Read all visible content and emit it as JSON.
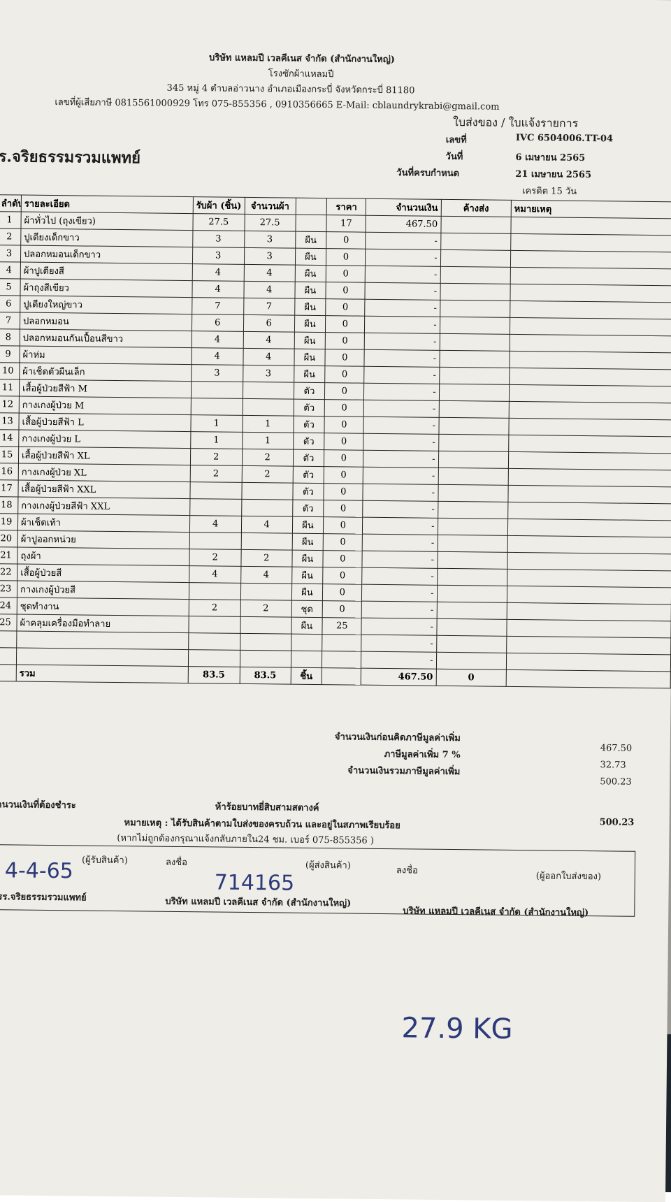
{
  "header": {
    "company": "บริษัท แหลมปี เวลคีเนส จำกัด (สำนักงานใหญ่)",
    "subtitle": "โรงซักผ้าแหลมปี",
    "address": "345 หมู่ 4 ตำบลอ่าวนาง อำเภอเมืองกระบี่ จังหวัดกระบี่ 81180",
    "contact": "เลขที่ผู้เสียภาษี 0815561000929 โทร 075-855356 , 0910356665  E-Mail: cblaundrykrabi@gmail.com",
    "doc_type": "ใบส่งของ / ใบแจ้งรายการ"
  },
  "meta": [
    [
      "เลขที่",
      "IVC 6504006.TT-04"
    ],
    [
      "วันที่",
      "6 เมษายน 2565"
    ],
    [
      "วันที่ครบกำหนด",
      "21 เมษายน 2565"
    ]
  ],
  "credit": "เครดิต 15 วัน",
  "customer": "ร.จริยธรรมรวมแพทย์",
  "table": {
    "headers": [
      "ลำดับ",
      "รายละเอียด",
      "รับผ้า (ชิ้น)",
      "จำนวนผ้า",
      null,
      "ราคา",
      "จำนวนเงิน",
      "ค้างส่ง",
      "หมายเหตุ"
    ],
    "rows": [
      [
        "1",
        "ผ้าทั่วไป (ถุงเขียว)",
        "27.5",
        "27.5",
        null,
        "17",
        "467.50",
        null,
        null
      ],
      [
        "2",
        "ปูเตียงเด็กขาว",
        "3",
        "3",
        "ผืน",
        "0",
        "-",
        null,
        null
      ],
      [
        "3",
        "ปลอกหมอนเด็กขาว",
        "3",
        "3",
        "ผืน",
        "0",
        "-",
        null,
        null
      ],
      [
        "4",
        "ผ้าปูเตียงสี",
        "4",
        "4",
        "ผืน",
        "0",
        "-",
        null,
        null
      ],
      [
        "5",
        "ผ้าถุงสีเขียว",
        "4",
        "4",
        "ผืน",
        "0",
        "-",
        null,
        null
      ],
      [
        "6",
        "ปูเตียงใหญ่ขาว",
        "7",
        "7",
        "ผืน",
        "0",
        "-",
        null,
        null
      ],
      [
        "7",
        "ปลอกหมอน",
        "6",
        "6",
        "ผืน",
        "0",
        "-",
        null,
        null
      ],
      [
        "8",
        "ปลอกหมอนกันเปื้อนสีขาว",
        "4",
        "4",
        "ผืน",
        "0",
        "-",
        null,
        null
      ],
      [
        "9",
        "ผ้าห่ม",
        "4",
        "4",
        "ผืน",
        "0",
        "-",
        null,
        null
      ],
      [
        "10",
        "ผ้าเช็ดตัวผืนเล็ก",
        "3",
        "3",
        "ผืน",
        "0",
        "-",
        null,
        null
      ],
      [
        "11",
        "เสื้อผู้ป่วยสีฟ้า M",
        null,
        null,
        "ตัว",
        "0",
        "-",
        null,
        null
      ],
      [
        "12",
        "กางเกงผู้ป่วย M",
        null,
        null,
        "ตัว",
        "0",
        "-",
        null,
        null
      ],
      [
        "13",
        "เสื้อผู้ป่วยสีฟ้า L",
        "1",
        "1",
        "ตัว",
        "0",
        "-",
        null,
        null
      ],
      [
        "14",
        "กางเกงผู้ป่วย L",
        "1",
        "1",
        "ตัว",
        "0",
        "-",
        null,
        null
      ],
      [
        "15",
        "เสื้อผู้ป่วยสีฟ้า XL",
        "2",
        "2",
        "ตัว",
        "0",
        "-",
        null,
        null
      ],
      [
        "16",
        "กางเกงผู้ป่วย XL",
        "2",
        "2",
        "ตัว",
        "0",
        "-",
        null,
        null
      ],
      [
        "17",
        "เสื้อผู้ป่วยสีฟ้า XXL",
        null,
        null,
        "ตัว",
        "0",
        "-",
        null,
        null
      ],
      [
        "18",
        "กางเกงผู้ป่วยสีฟ้า XXL",
        null,
        null,
        "ตัว",
        "0",
        "-",
        null,
        null
      ],
      [
        "19",
        "ผ้าเช็ดเท้า",
        "4",
        "4",
        "ผืน",
        "0",
        "-",
        null,
        null
      ],
      [
        "20",
        "ผ้าปูออกหน่วย",
        null,
        null,
        "ผืน",
        "0",
        "-",
        null,
        null
      ],
      [
        "21",
        "ถุงผ้า",
        "2",
        "2",
        "ผืน",
        "0",
        "-",
        null,
        null
      ],
      [
        "22",
        "เสื้อผู้ป่วยสี",
        "4",
        "4",
        "ผืน",
        "0",
        "-",
        null,
        null
      ],
      [
        "23",
        "กางเกงผู้ป่วยสี",
        null,
        null,
        "ผืน",
        "0",
        "-",
        null,
        null
      ],
      [
        "24",
        "ชุดทำงาน",
        "2",
        "2",
        "ชุด",
        "0",
        "-",
        null,
        null
      ],
      [
        "25",
        "ผ้าคลุมเครื่องมือทำลาย",
        null,
        null,
        "ผืน",
        "25",
        "-",
        null,
        null
      ],
      [
        null,
        null,
        null,
        null,
        null,
        null,
        "-",
        null,
        null
      ],
      [
        null,
        null,
        null,
        null,
        null,
        null,
        "-",
        null,
        null
      ]
    ],
    "total": [
      null,
      "รวม",
      "83.5",
      "83.5",
      "ชิ้น",
      null,
      "467.50",
      "0",
      null
    ]
  },
  "summary": [
    [
      "จำนวนเงินก่อนคิดภาษีมูลค่าเพิ่ม",
      "467.50"
    ],
    [
      "ภาษีมูลค่าเพิ่ม 7 %",
      "32.73"
    ],
    [
      "จำนวนเงินรวมภาษีมูลค่าเพิ่ม",
      "500.23"
    ]
  ],
  "payable": {
    "label": "จำนวนเงินที่ต้องชำระ",
    "words": "ห้าร้อยบาทยี่สิบสามสตางค์",
    "amount": "500.23"
  },
  "notes": [
    "หมายเหตุ : ได้รับสินค้าตามใบส่งของครบถ้วน และอยู่ในสภาพเรียบร้อย",
    "(หากไม่ถูกต้องกรุณาแจ้งกลับภายใน24 ชม.  เบอร์ 075-855356 )"
  ],
  "signatures": [
    {
      "role": "(ผู้รับสินค้า)",
      "org": "รร.จริยธรรมรวมแพทย์"
    },
    {
      "label": "ลงชื่อ",
      "role": "(ผู้ส่งสินค้า)",
      "org": "บริษัท แหลมปี เวลคีเนส จำกัด (สำนักงานใหญ่)"
    },
    {
      "label": "ลงชื่อ",
      "role": "(ผู้ออกใบส่งของ)",
      "org": "บริษัท แหลมปี เวลคีเนส จำกัด (สำนักงานใหญ่)"
    }
  ],
  "handwriting": [
    "4-4-65",
    "714165",
    "27.9 KG"
  ]
}
